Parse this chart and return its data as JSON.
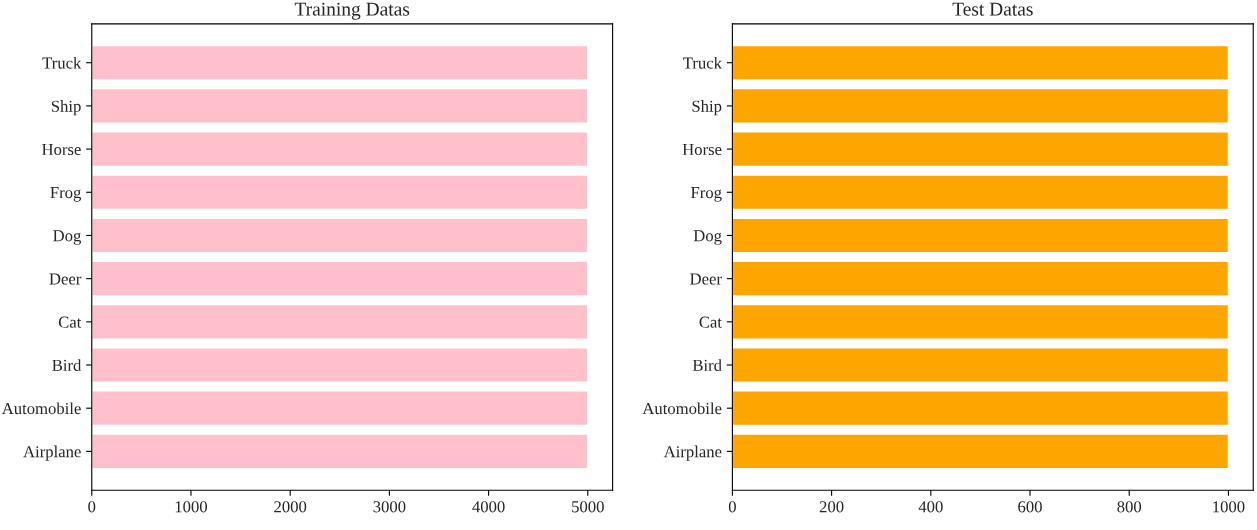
{
  "chart_data": [
    {
      "type": "bar",
      "orientation": "horizontal",
      "title": "Training Datas",
      "categories": [
        "Truck",
        "Ship",
        "Horse",
        "Frog",
        "Dog",
        "Deer",
        "Cat",
        "Bird",
        "Automobile",
        "Airplane"
      ],
      "values": [
        5000,
        5000,
        5000,
        5000,
        5000,
        5000,
        5000,
        5000,
        5000,
        5000
      ],
      "color": "#ffc0cb",
      "xlim": [
        0,
        5250
      ],
      "xticks": [
        0,
        1000,
        2000,
        3000,
        4000,
        5000
      ],
      "grid": false,
      "legend": false
    },
    {
      "type": "bar",
      "orientation": "horizontal",
      "title": "Test Datas",
      "categories": [
        "Truck",
        "Ship",
        "Horse",
        "Frog",
        "Dog",
        "Deer",
        "Cat",
        "Bird",
        "Automobile",
        "Airplane"
      ],
      "values": [
        1000,
        1000,
        1000,
        1000,
        1000,
        1000,
        1000,
        1000,
        1000,
        1000
      ],
      "color": "#ffa500",
      "xlim": [
        0,
        1050
      ],
      "xticks": [
        0,
        200,
        400,
        600,
        800,
        1000
      ],
      "grid": false,
      "legend": false
    }
  ]
}
